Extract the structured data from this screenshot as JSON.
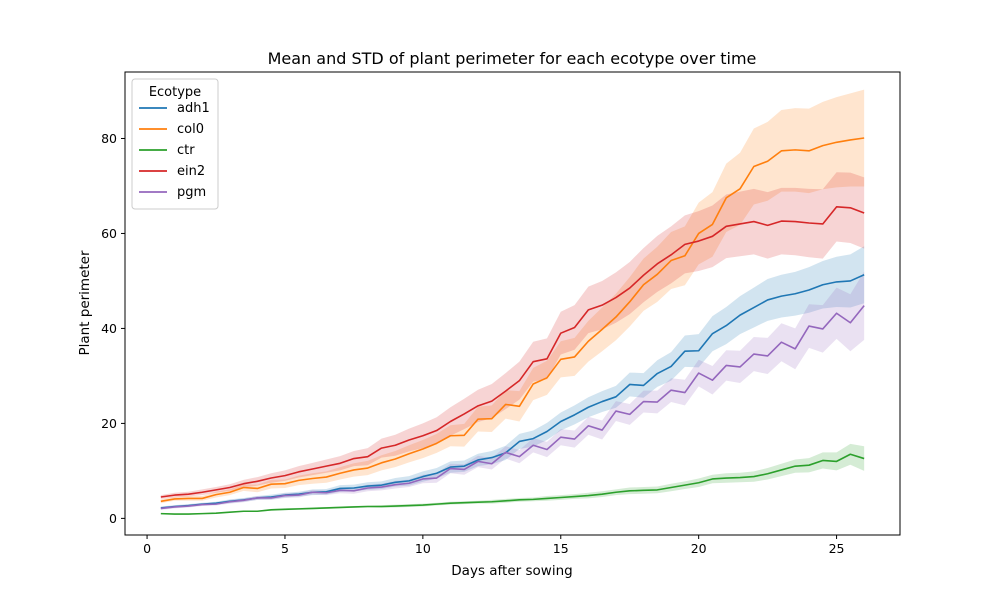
{
  "chart_data": {
    "type": "line",
    "title": "Mean and STD of plant perimeter for each ecotype over time",
    "xlabel": "Days after sowing",
    "ylabel": "Plant perimeter",
    "xlim": [
      -0.8,
      27.3
    ],
    "ylim": [
      -3.5,
      94
    ],
    "xticks": [
      0,
      5,
      10,
      15,
      20,
      25
    ],
    "yticks": [
      0,
      20,
      40,
      60,
      80
    ],
    "grid": false,
    "legend": {
      "title": "Ecotype",
      "position": "top-left"
    },
    "x": [
      0.5,
      1,
      1.5,
      2,
      2.5,
      3,
      3.5,
      4,
      4.5,
      5,
      5.5,
      6,
      6.5,
      7,
      7.5,
      8,
      8.5,
      9,
      9.5,
      10,
      10.5,
      11,
      11.5,
      12,
      12.5,
      13,
      13.5,
      14,
      14.5,
      15,
      15.5,
      16,
      16.5,
      17,
      17.5,
      18,
      18.5,
      19,
      19.5,
      20,
      20.5,
      21,
      21.5,
      22,
      22.5,
      23,
      23.5,
      24,
      24.5,
      25,
      25.5,
      26
    ],
    "series": [
      {
        "name": "adh1",
        "color": "#1f77b4",
        "values": [
          2.2,
          2.5,
          2.7,
          3.0,
          3.2,
          3.6,
          3.9,
          4.3,
          4.5,
          4.9,
          5.1,
          5.5,
          5.6,
          6.3,
          6.4,
          6.8,
          7.0,
          7.6,
          7.9,
          8.8,
          9.5,
          10.8,
          11.0,
          12.3,
          12.8,
          13.8,
          16.2,
          16.8,
          18.3,
          20.4,
          21.8,
          23.4,
          24.6,
          25.6,
          28.2,
          28.0,
          30.5,
          32.0,
          35.2,
          35.3,
          38.9,
          40.6,
          42.8,
          44.4,
          46.0,
          46.8,
          47.3,
          48.1,
          49.2,
          49.8,
          50.0,
          51.3
        ],
        "std": [
          0.3,
          0.3,
          0.3,
          0.3,
          0.3,
          0.4,
          0.4,
          0.4,
          0.5,
          0.5,
          0.5,
          0.6,
          0.6,
          0.7,
          0.7,
          0.8,
          0.8,
          0.9,
          1.0,
          1.1,
          1.1,
          1.2,
          1.2,
          1.3,
          1.4,
          1.5,
          1.6,
          1.7,
          1.8,
          1.9,
          2.0,
          2.1,
          2.2,
          2.3,
          2.5,
          2.6,
          2.8,
          3.0,
          3.3,
          3.5,
          3.7,
          3.9,
          4.0,
          4.2,
          4.4,
          4.5,
          4.6,
          4.8,
          5.0,
          5.3,
          5.6,
          6.0
        ]
      },
      {
        "name": "col0",
        "color": "#ff7f0e",
        "values": [
          3.6,
          4.1,
          4.2,
          4.2,
          5.0,
          5.5,
          6.5,
          6.3,
          7.2,
          7.3,
          8.0,
          8.4,
          8.7,
          9.5,
          10.2,
          10.6,
          11.7,
          12.5,
          13.6,
          14.6,
          15.8,
          17.4,
          17.5,
          20.9,
          21.0,
          24.0,
          23.6,
          28.3,
          29.6,
          33.5,
          34.0,
          37.3,
          39.8,
          42.4,
          45.6,
          49.2,
          51.4,
          54.3,
          55.3,
          60.0,
          61.9,
          67.5,
          69.4,
          74.1,
          75.2,
          77.4,
          77.6,
          77.4,
          78.5,
          79.2,
          79.7,
          80.1
        ],
        "std": [
          0.4,
          0.4,
          0.5,
          0.5,
          0.6,
          0.6,
          0.7,
          0.8,
          0.9,
          0.9,
          1.0,
          1.1,
          1.2,
          1.3,
          1.4,
          1.5,
          1.6,
          1.7,
          1.8,
          1.9,
          2.0,
          2.2,
          2.4,
          2.6,
          2.8,
          3.0,
          3.2,
          3.4,
          3.6,
          3.8,
          4.0,
          4.3,
          4.6,
          4.9,
          5.2,
          5.5,
          5.8,
          6.0,
          6.2,
          6.5,
          6.8,
          7.2,
          7.6,
          8.0,
          8.3,
          8.6,
          8.8,
          8.9,
          9.2,
          9.5,
          9.8,
          10.2
        ]
      },
      {
        "name": "ctr",
        "color": "#2ca02c",
        "values": [
          1.0,
          0.9,
          0.9,
          1.0,
          1.1,
          1.3,
          1.5,
          1.5,
          1.8,
          1.9,
          2.0,
          2.1,
          2.2,
          2.3,
          2.4,
          2.5,
          2.5,
          2.6,
          2.7,
          2.8,
          3.0,
          3.2,
          3.3,
          3.4,
          3.5,
          3.7,
          3.9,
          4.0,
          4.2,
          4.4,
          4.6,
          4.8,
          5.1,
          5.5,
          5.8,
          5.9,
          6.0,
          6.5,
          7.0,
          7.5,
          8.3,
          8.5,
          8.6,
          8.8,
          9.4,
          10.2,
          11.0,
          11.2,
          12.2,
          12.0,
          13.5,
          12.6
        ],
        "std": [
          0.1,
          0.1,
          0.1,
          0.1,
          0.1,
          0.1,
          0.1,
          0.1,
          0.2,
          0.2,
          0.2,
          0.2,
          0.2,
          0.2,
          0.2,
          0.2,
          0.3,
          0.3,
          0.3,
          0.3,
          0.3,
          0.3,
          0.3,
          0.3,
          0.4,
          0.4,
          0.4,
          0.4,
          0.5,
          0.5,
          0.5,
          0.6,
          0.6,
          0.6,
          0.7,
          0.7,
          0.7,
          0.8,
          0.8,
          0.9,
          0.9,
          1.0,
          1.0,
          1.1,
          1.2,
          1.3,
          1.4,
          1.5,
          1.7,
          1.9,
          2.2,
          2.6
        ]
      },
      {
        "name": "ein2",
        "color": "#d62728",
        "values": [
          4.5,
          4.9,
          5.1,
          5.5,
          6.0,
          6.5,
          7.3,
          7.8,
          8.5,
          9.0,
          9.8,
          10.4,
          11.0,
          11.6,
          12.6,
          13.0,
          14.8,
          15.4,
          16.5,
          17.4,
          18.5,
          20.4,
          22.0,
          23.7,
          24.7,
          26.8,
          29.0,
          33.0,
          33.6,
          39.0,
          40.2,
          43.9,
          44.9,
          46.5,
          48.5,
          51.2,
          53.6,
          55.5,
          57.7,
          58.4,
          59.4,
          61.5,
          62.0,
          62.5,
          61.7,
          62.6,
          62.5,
          62.2,
          62.0,
          65.6,
          65.4,
          64.3
        ],
        "std": [
          0.4,
          0.5,
          0.5,
          0.6,
          0.6,
          0.7,
          0.8,
          0.9,
          1.0,
          1.1,
          1.2,
          1.3,
          1.4,
          1.5,
          1.6,
          1.8,
          2.0,
          2.2,
          2.4,
          2.6,
          2.8,
          3.0,
          3.2,
          3.4,
          3.6,
          3.8,
          4.0,
          4.2,
          4.3,
          4.5,
          4.7,
          4.9,
          5.1,
          5.3,
          5.5,
          5.7,
          5.9,
          6.0,
          6.1,
          6.3,
          6.5,
          6.7,
          6.8,
          6.9,
          7.0,
          7.0,
          7.1,
          7.2,
          7.3,
          7.3,
          7.4,
          7.5
        ]
      },
      {
        "name": "pgm",
        "color": "#9467bd",
        "values": [
          2.1,
          2.4,
          2.6,
          2.9,
          3.0,
          3.5,
          3.8,
          4.3,
          4.3,
          4.8,
          4.9,
          5.5,
          5.4,
          5.9,
          5.8,
          6.4,
          6.6,
          7.1,
          7.4,
          8.3,
          8.5,
          10.5,
          10.3,
          12.0,
          11.5,
          13.9,
          13.0,
          15.4,
          14.5,
          17.1,
          16.7,
          19.5,
          18.6,
          22.6,
          21.9,
          24.6,
          24.5,
          27.0,
          26.5,
          30.6,
          29.1,
          32.2,
          31.9,
          34.6,
          34.2,
          37.1,
          35.7,
          40.5,
          39.9,
          43.2,
          41.2,
          44.8
        ],
        "std": [
          0.3,
          0.3,
          0.3,
          0.3,
          0.3,
          0.4,
          0.4,
          0.4,
          0.4,
          0.5,
          0.5,
          0.5,
          0.5,
          0.6,
          0.6,
          0.7,
          0.7,
          0.8,
          0.8,
          0.9,
          1.0,
          1.0,
          1.1,
          1.2,
          1.2,
          1.3,
          1.4,
          1.5,
          1.6,
          1.7,
          1.8,
          1.9,
          2.0,
          2.1,
          2.2,
          2.3,
          2.4,
          2.5,
          2.7,
          2.8,
          3.0,
          3.2,
          3.4,
          3.6,
          3.8,
          4.0,
          4.3,
          4.6,
          5.0,
          5.4,
          6.0,
          7.2
        ]
      }
    ]
  }
}
